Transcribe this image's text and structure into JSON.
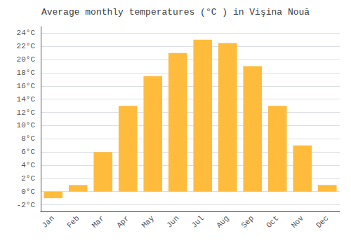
{
  "chart_data": {
    "type": "bar",
    "title": "Average monthly temperatures (°C ) in Vişina Nouă",
    "categories": [
      "Jan",
      "Feb",
      "Mar",
      "Apr",
      "May",
      "Jun",
      "Jul",
      "Aug",
      "Sep",
      "Oct",
      "Nov",
      "Dec"
    ],
    "values": [
      -1.0,
      1.0,
      6.0,
      13.0,
      17.5,
      21.0,
      23.0,
      22.5,
      19.0,
      13.0,
      7.0,
      1.0
    ],
    "color": "#FFBC3C",
    "ylim": [
      -3,
      25
    ],
    "yticks": [
      {
        "value": -2,
        "label": "-2°C"
      },
      {
        "value": 0,
        "label": "0°C"
      },
      {
        "value": 2,
        "label": "2°C"
      },
      {
        "value": 4,
        "label": "4°C"
      },
      {
        "value": 6,
        "label": "6°C"
      },
      {
        "value": 8,
        "label": "8°C"
      },
      {
        "value": 10,
        "label": "10°C"
      },
      {
        "value": 12,
        "label": "12°C"
      },
      {
        "value": 14,
        "label": "14°C"
      },
      {
        "value": 16,
        "label": "16°C"
      },
      {
        "value": 18,
        "label": "18°C"
      },
      {
        "value": 20,
        "label": "20°C"
      },
      {
        "value": 22,
        "label": "22°C"
      },
      {
        "value": 24,
        "label": "24°C"
      }
    ],
    "grid": true
  }
}
